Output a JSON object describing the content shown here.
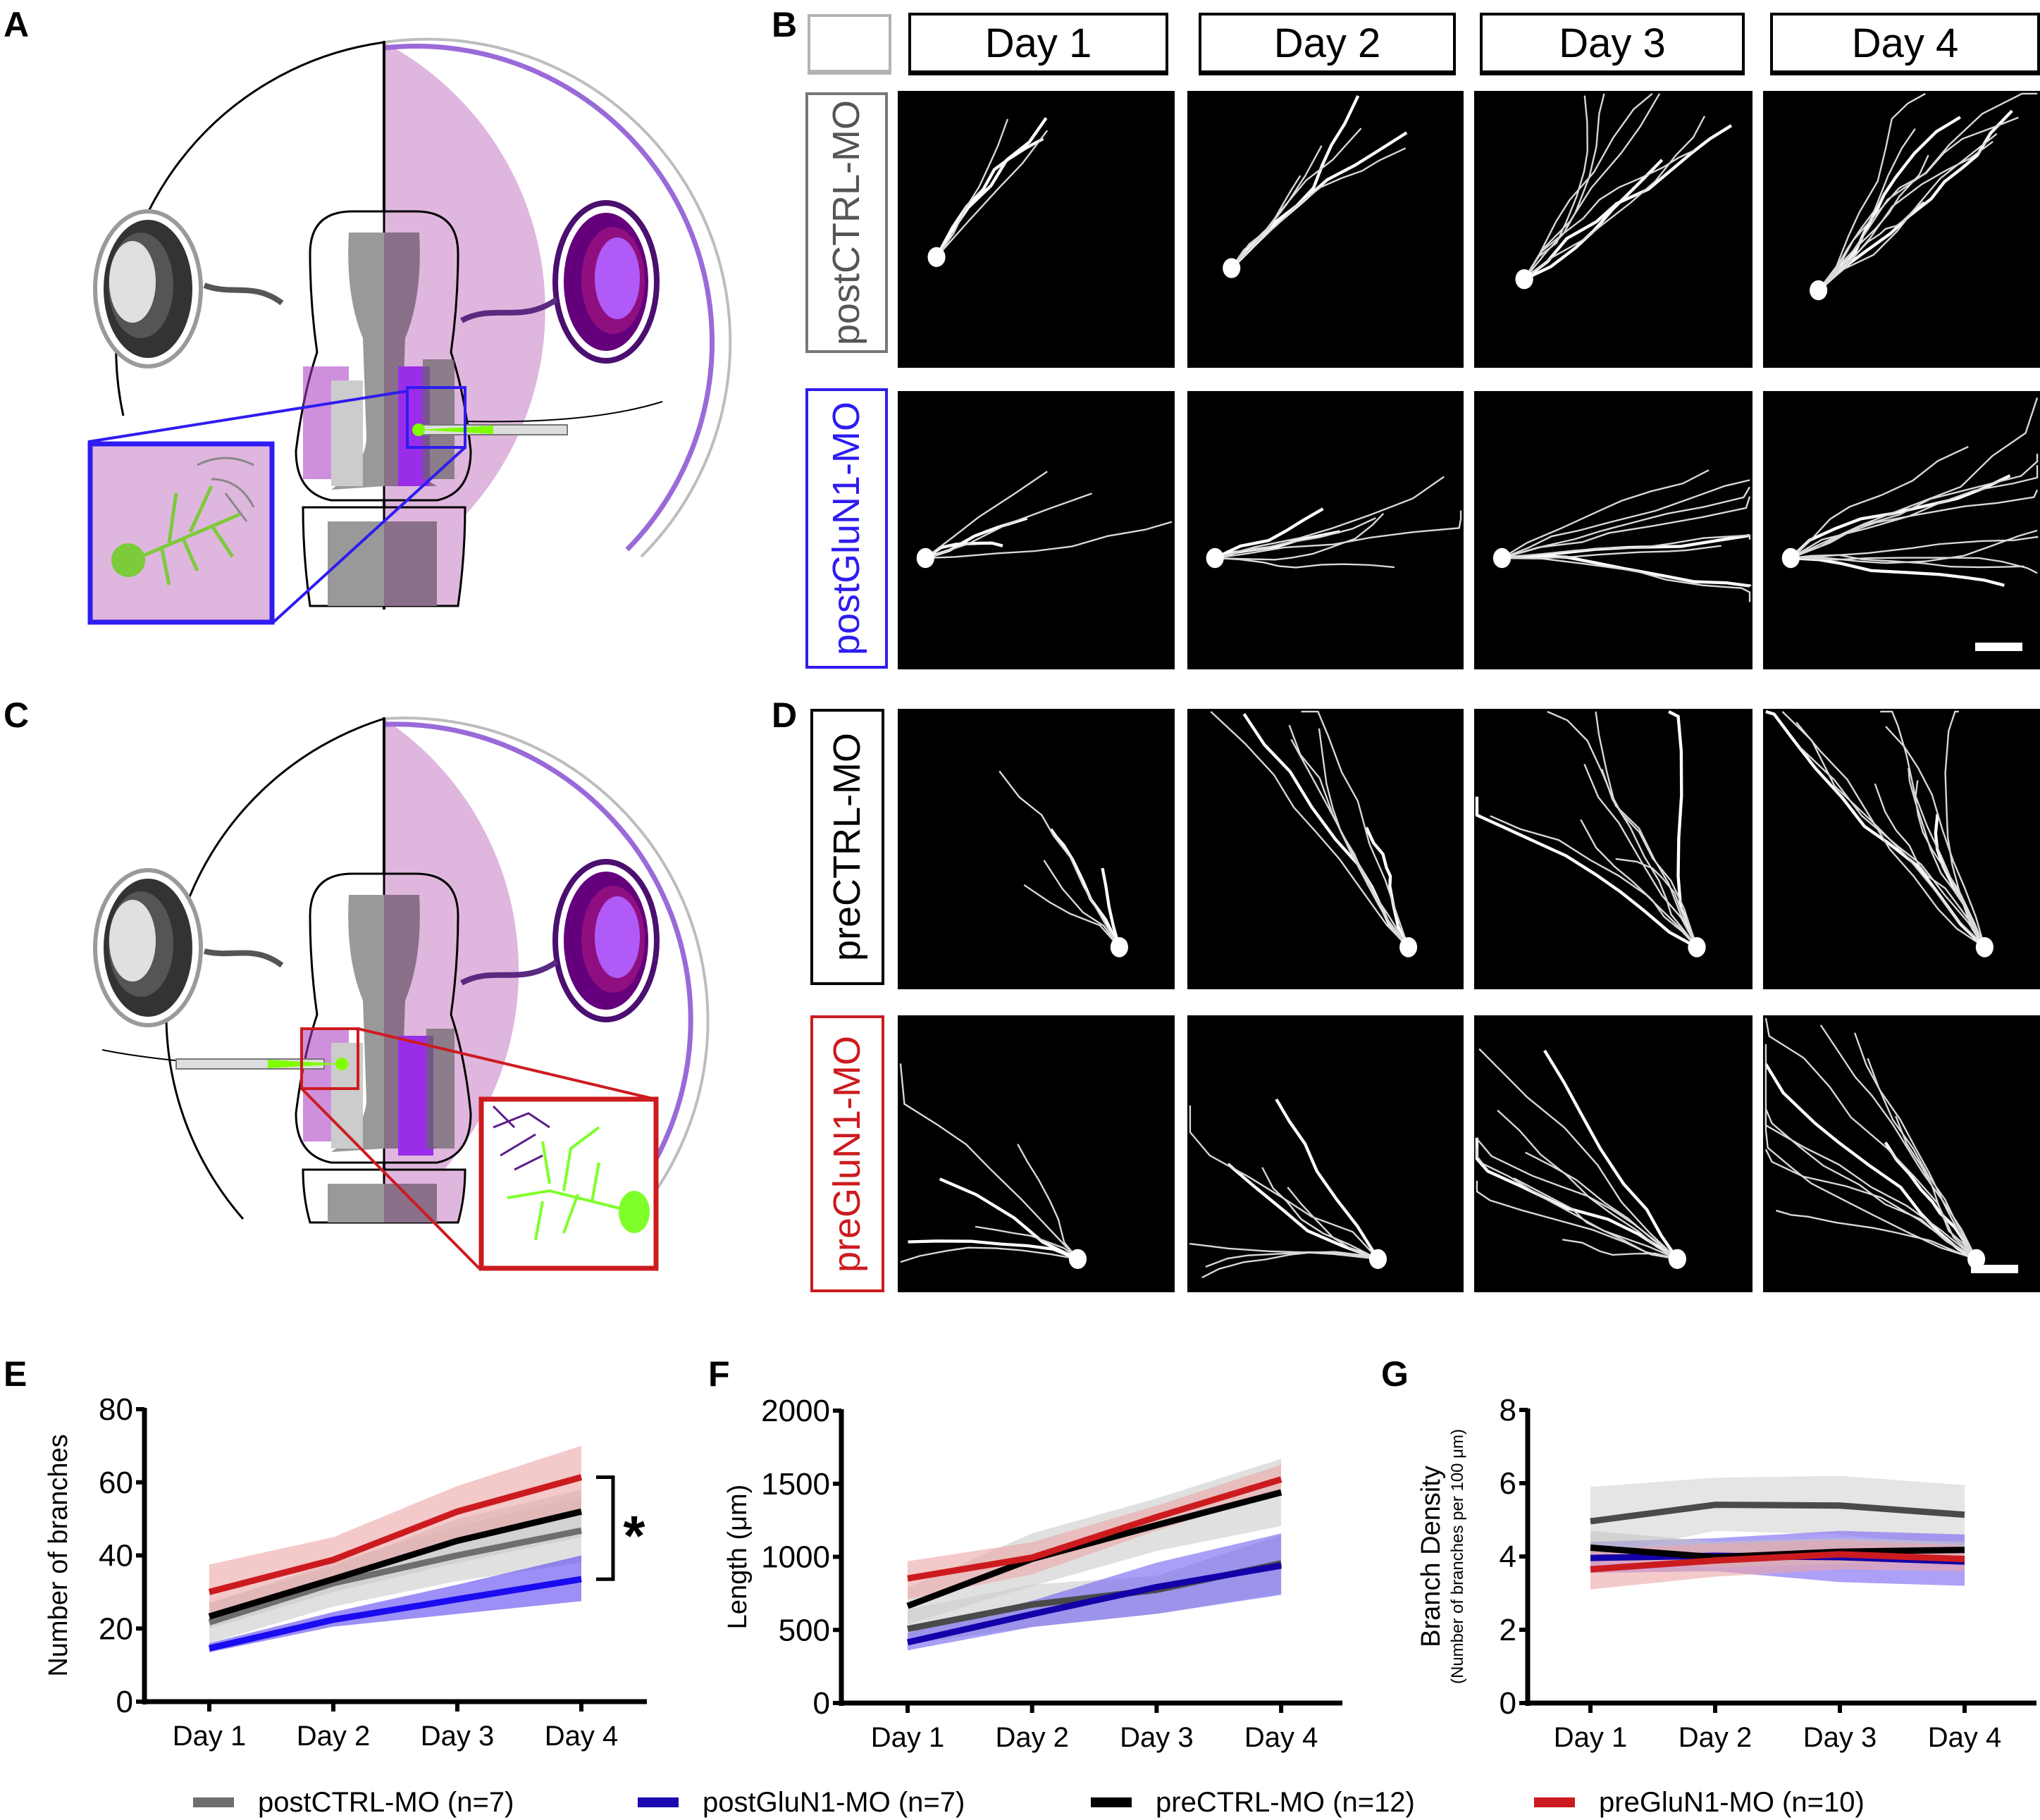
{
  "figure": {
    "panel_letters": [
      "A",
      "B",
      "C",
      "D",
      "E",
      "F",
      "G"
    ]
  },
  "panel_a": {
    "description": "Schematic of tadpole brain, postsynaptic tectal neuron electroporation",
    "inset_border_color": "#2e1cf0",
    "icons": [
      "eye-icon",
      "brain-tectum-icon",
      "electrode-pipette-icon",
      "neuron-inset-icon"
    ]
  },
  "panel_b": {
    "column_headers": [
      "Day 1",
      "Day 2",
      "Day 3",
      "Day 4"
    ],
    "rows": [
      {
        "label": "postCTRL-MO",
        "color": "#777777"
      },
      {
        "label": "postGluN1-MO",
        "color": "#2e1cf0"
      }
    ]
  },
  "panel_c": {
    "description": "Schematic of tadpole brain, presynaptic retinal ganglion cell electroporation",
    "inset_border_color": "#cc1b1f"
  },
  "panel_d": {
    "rows": [
      {
        "label": "preCTRL-MO",
        "color": "#000000"
      },
      {
        "label": "preGluN1-MO",
        "color": "#cc1b1f"
      }
    ]
  },
  "legend": [
    {
      "label": "postCTRL-MO (n=7)",
      "color": "#6e6e6e"
    },
    {
      "label": "postGluN1-MO (n=7)",
      "color": "#1a0bb0"
    },
    {
      "label": "preCTRL-MO (n=12)",
      "color": "#000000"
    },
    {
      "label": "preGluN1-MO (n=10)",
      "color": "#cc1b1f"
    }
  ],
  "chart_data": [
    {
      "id": "E",
      "type": "line",
      "title": "",
      "xlabel": "",
      "ylabel": "Number of branches",
      "categories": [
        "Day 1",
        "Day 2",
        "Day 3",
        "Day 4"
      ],
      "ylim": [
        0,
        80
      ],
      "yticks": [
        0,
        20,
        40,
        60,
        80
      ],
      "grid": false,
      "annotation": {
        "text": "*",
        "type": "significance-bracket",
        "between": [
          "preGluN1-MO",
          "postGluN1-MO"
        ],
        "at": "Day 4"
      },
      "series": [
        {
          "name": "postCTRL-MO",
          "color": "#6e6e6e",
          "band": "#cccccc",
          "values": [
            21.7,
            32.4,
            40.0,
            46.8
          ],
          "lower": [
            16,
            26,
            33,
            38
          ],
          "upper": [
            27,
            38,
            48,
            56
          ]
        },
        {
          "name": "postGluN1-MO",
          "color": "#1a0bf0",
          "band": "#5a44f0",
          "values": [
            14.6,
            22.4,
            28.0,
            33.5
          ],
          "lower": [
            13.5,
            20.5,
            24,
            27.5
          ],
          "upper": [
            16,
            24.5,
            32,
            40
          ]
        },
        {
          "name": "preCTRL-MO",
          "color": "#000000",
          "band": "#c8c8c8",
          "values": [
            23.3,
            33.5,
            44.0,
            52.0
          ],
          "lower": [
            20,
            30,
            38,
            45
          ],
          "upper": [
            27,
            37,
            50,
            58
          ]
        },
        {
          "name": "preGluN1-MO",
          "color": "#cc1b1f",
          "band": "#eda5a7",
          "values": [
            30.0,
            38.8,
            52.0,
            61.4
          ],
          "lower": [
            23,
            33,
            44,
            52
          ],
          "upper": [
            37.5,
            45,
            59,
            70
          ]
        }
      ]
    },
    {
      "id": "F",
      "type": "line",
      "title": "",
      "xlabel": "",
      "ylabel": "Length (μm)",
      "categories": [
        "Day 1",
        "Day 2",
        "Day 3",
        "Day 4"
      ],
      "ylim": [
        0,
        2000
      ],
      "yticks": [
        0,
        500,
        1000,
        1500,
        2000
      ],
      "grid": false,
      "series": [
        {
          "name": "postCTRL-MO",
          "color": "#4a4a4a",
          "band": "#cccccc",
          "values": [
            507,
            673,
            774,
            955
          ],
          "lower": [
            400,
            520,
            610,
            750
          ],
          "upper": [
            640,
            810,
            870,
            1150
          ]
        },
        {
          "name": "postGluN1-MO",
          "color": "#1300a8",
          "band": "#6e5ff0",
          "values": [
            415,
            608,
            793,
            940
          ],
          "lower": [
            360,
            520,
            610,
            740
          ],
          "upper": [
            480,
            700,
            960,
            1160
          ]
        },
        {
          "name": "preCTRL-MO",
          "color": "#000000",
          "band": "#cccccc",
          "values": [
            664,
            986,
            1217,
            1441
          ],
          "lower": [
            540,
            800,
            1040,
            1210
          ],
          "upper": [
            790,
            1160,
            1400,
            1670
          ]
        },
        {
          "name": "preGluN1-MO",
          "color": "#cc1b1f",
          "band": "#eda5a7",
          "values": [
            852,
            995,
            1272,
            1530
          ],
          "lower": [
            710,
            880,
            1180,
            1440
          ],
          "upper": [
            970,
            1100,
            1350,
            1630
          ]
        }
      ]
    },
    {
      "id": "G",
      "type": "line",
      "title": "",
      "xlabel": "",
      "ylabel": "Branch Density",
      "ylabel_sub": "(Number of branches per 100 μm)",
      "categories": [
        "Day 1",
        "Day 2",
        "Day 3",
        "Day 4"
      ],
      "ylim": [
        0,
        8
      ],
      "yticks": [
        0,
        2,
        4,
        6,
        8
      ],
      "grid": false,
      "series": [
        {
          "name": "postCTRL-MO",
          "color": "#4a4a4a",
          "band": "#d4d4d4",
          "values": [
            4.96,
            5.41,
            5.39,
            5.14
          ],
          "lower": [
            4.0,
            4.7,
            4.6,
            4.3
          ],
          "upper": [
            5.9,
            6.15,
            6.2,
            5.95
          ]
        },
        {
          "name": "postGluN1-MO",
          "color": "#1300a8",
          "band": "#7563f2",
          "values": [
            3.96,
            4.02,
            3.98,
            3.86
          ],
          "lower": [
            3.55,
            3.6,
            3.3,
            3.2
          ],
          "upper": [
            4.4,
            4.5,
            4.7,
            4.6
          ]
        },
        {
          "name": "preCTRL-MO",
          "color": "#000000",
          "band": "#c4c4c4",
          "values": [
            4.24,
            3.98,
            4.13,
            4.18
          ],
          "lower": [
            3.9,
            3.7,
            3.8,
            3.9
          ],
          "upper": [
            4.7,
            4.4,
            4.5,
            4.4
          ]
        },
        {
          "name": "preGluN1-MO",
          "color": "#cc1b1f",
          "band": "#eda5a7",
          "values": [
            3.65,
            3.89,
            4.06,
            3.93
          ],
          "lower": [
            3.1,
            3.45,
            3.65,
            3.6
          ],
          "upper": [
            4.2,
            4.35,
            4.45,
            4.3
          ]
        }
      ]
    }
  ]
}
